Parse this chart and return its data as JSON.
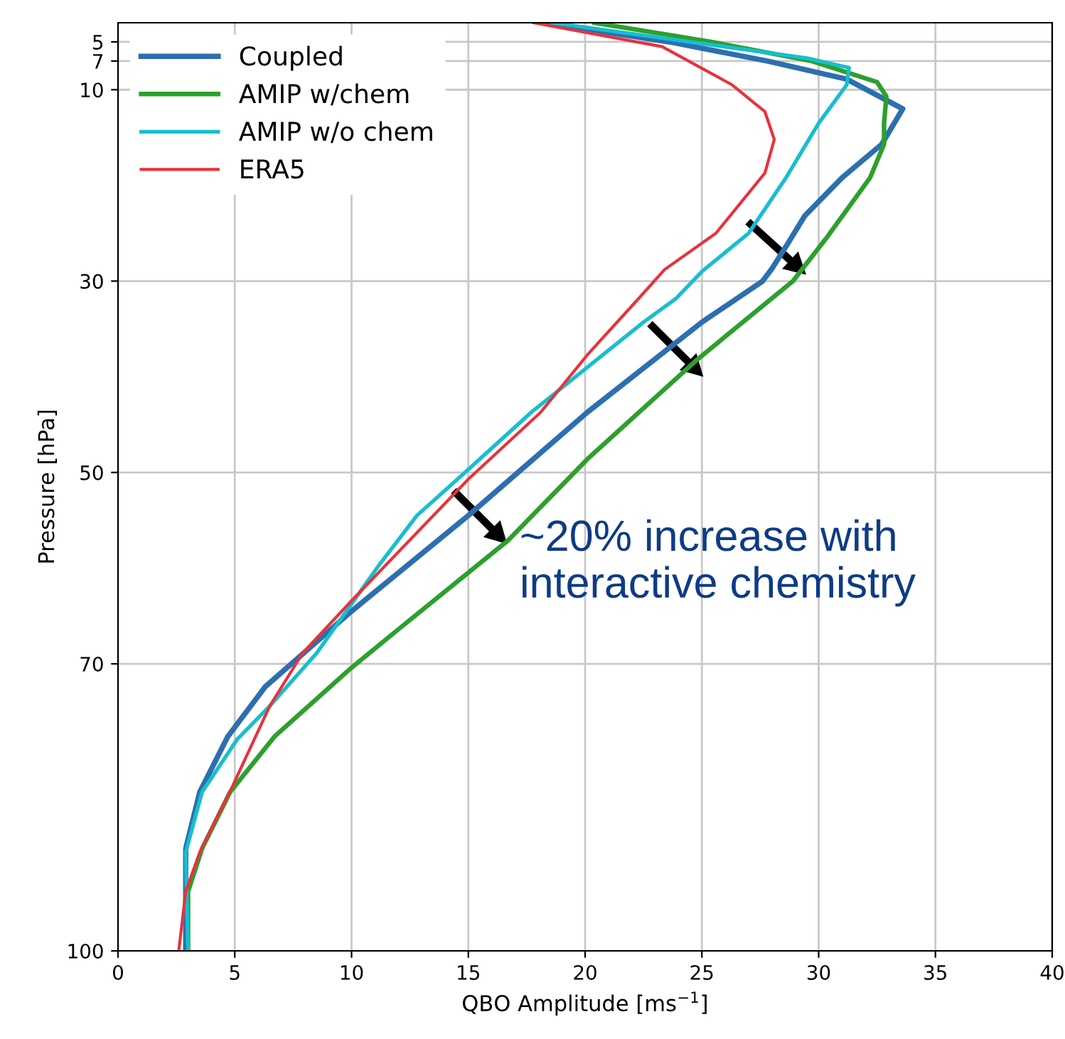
{
  "chart_data": {
    "type": "line",
    "xlabel": "QBO Amplitude [ms$^{−1}$]",
    "ylabel": "Pressure [hPa]",
    "xlim": [
      0,
      40
    ],
    "xticks": [
      0,
      5,
      10,
      15,
      20,
      25,
      30,
      35,
      40
    ],
    "ylim": [
      100,
      3
    ],
    "yticks": [
      5,
      7,
      10,
      30,
      50,
      70,
      100
    ],
    "grid": true,
    "legend": "top left",
    "annotations": [
      "~20% increase with interactive chemistry"
    ],
    "series": [
      {
        "name": "Coupled",
        "color": "#2c6fb0",
        "x": [
          18.3,
          23.6,
          27.8,
          31.2,
          33.6,
          32.7,
          31.0,
          29.4,
          28.7,
          28.0,
          27.6,
          25.0,
          20.1,
          15.0,
          10.0,
          6.3,
          4.7,
          3.5,
          2.9,
          2.9
        ],
        "values": [
          3,
          5,
          7,
          8.9,
          12,
          15.7,
          19.2,
          23.2,
          26,
          28.7,
          30,
          34.3,
          43.7,
          54.5,
          64.5,
          72.4,
          77.6,
          83.4,
          89.3,
          100
        ]
      },
      {
        "name": "AMIP w/chem",
        "color": "#2ca02c",
        "x": [
          20.4,
          25.4,
          29.7,
          32.5,
          32.9,
          32.8,
          32.8,
          32.2,
          30.3,
          28.9,
          24.8,
          20.1,
          16.7,
          12.0,
          10.0,
          6.7,
          4.8,
          3.6,
          3.0,
          3.0
        ],
        "values": [
          3,
          5,
          7,
          9.2,
          10.7,
          13.5,
          15.7,
          19.2,
          25.6,
          30,
          38.2,
          48.6,
          57.1,
          66.4,
          70.4,
          77.6,
          83.4,
          89.3,
          93.8,
          100
        ]
      },
      {
        "name": "AMIP w/o chem",
        "color": "#17becf",
        "x": [
          18.6,
          29.5,
          31.3,
          31.2,
          30.0,
          28.6,
          27.0,
          25.0,
          23.9,
          22.5,
          17.7,
          14.9,
          12.8,
          11.2,
          8.5,
          6.5,
          5.1,
          3.6,
          2.9,
          3.0
        ],
        "values": [
          3,
          6.7,
          7.7,
          9.5,
          13.5,
          19.2,
          25,
          29,
          31.8,
          34.3,
          43.7,
          49.9,
          54.5,
          59.6,
          68.9,
          74.4,
          77.9,
          83.4,
          89.7,
          100
        ]
      },
      {
        "name": "ERA5",
        "color": "#e8323c",
        "x": [
          17.8,
          23.3,
          26.3,
          27.7,
          28.1,
          27.7,
          25.6,
          23.4,
          22.3,
          20.1,
          18.1,
          15.0,
          10.0,
          7.9,
          6.5,
          4.9,
          3.5,
          2.9,
          2.6
        ],
        "values": [
          3,
          5.5,
          9.5,
          12.3,
          15.2,
          18.7,
          25,
          28.8,
          31.8,
          37.7,
          43.7,
          50.7,
          63.4,
          68.9,
          74.4,
          82.8,
          89.7,
          93.8,
          100
        ]
      }
    ]
  }
}
